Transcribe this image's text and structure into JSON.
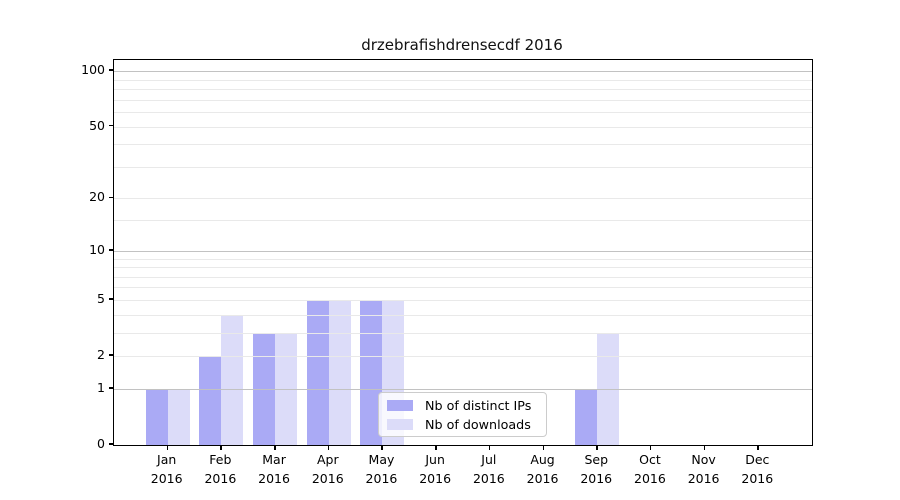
{
  "title": "drzebrafishdrensecdf 2016",
  "chart_data": {
    "type": "bar",
    "title": "drzebrafishdrensecdf 2016",
    "categories": [
      "Jan",
      "Feb",
      "Mar",
      "Apr",
      "May",
      "Jun",
      "Jul",
      "Aug",
      "Sep",
      "Oct",
      "Nov",
      "Dec"
    ],
    "year": "2016",
    "series": [
      {
        "name": "Nb of distinct IPs",
        "color": "#aaaaf5",
        "values": [
          1,
          2,
          3,
          5,
          5,
          0,
          0,
          0,
          1,
          0,
          0,
          0
        ]
      },
      {
        "name": "Nb of downloads",
        "color": "#dcdcf9",
        "values": [
          1,
          4,
          3,
          5,
          5,
          0,
          0,
          0,
          3,
          0,
          0,
          0
        ]
      }
    ],
    "yscale": "log10(value+1)",
    "ylim": [
      0,
      115
    ],
    "yticks": [
      100,
      50,
      20,
      10,
      5,
      2,
      1,
      0
    ],
    "grid": {
      "major_values": [
        1,
        10,
        100
      ],
      "minor_values": [
        2,
        3,
        4,
        5,
        6,
        7,
        8,
        9,
        15,
        20,
        30,
        40,
        50,
        60,
        70,
        80,
        90
      ],
      "major_color": "#c2c2c2",
      "minor_color": "#e9e9e9"
    },
    "legend_position": "lower center",
    "xlabel": "",
    "ylabel": ""
  },
  "legend": {
    "items": [
      "Nb of distinct IPs",
      "Nb of downloads"
    ]
  }
}
